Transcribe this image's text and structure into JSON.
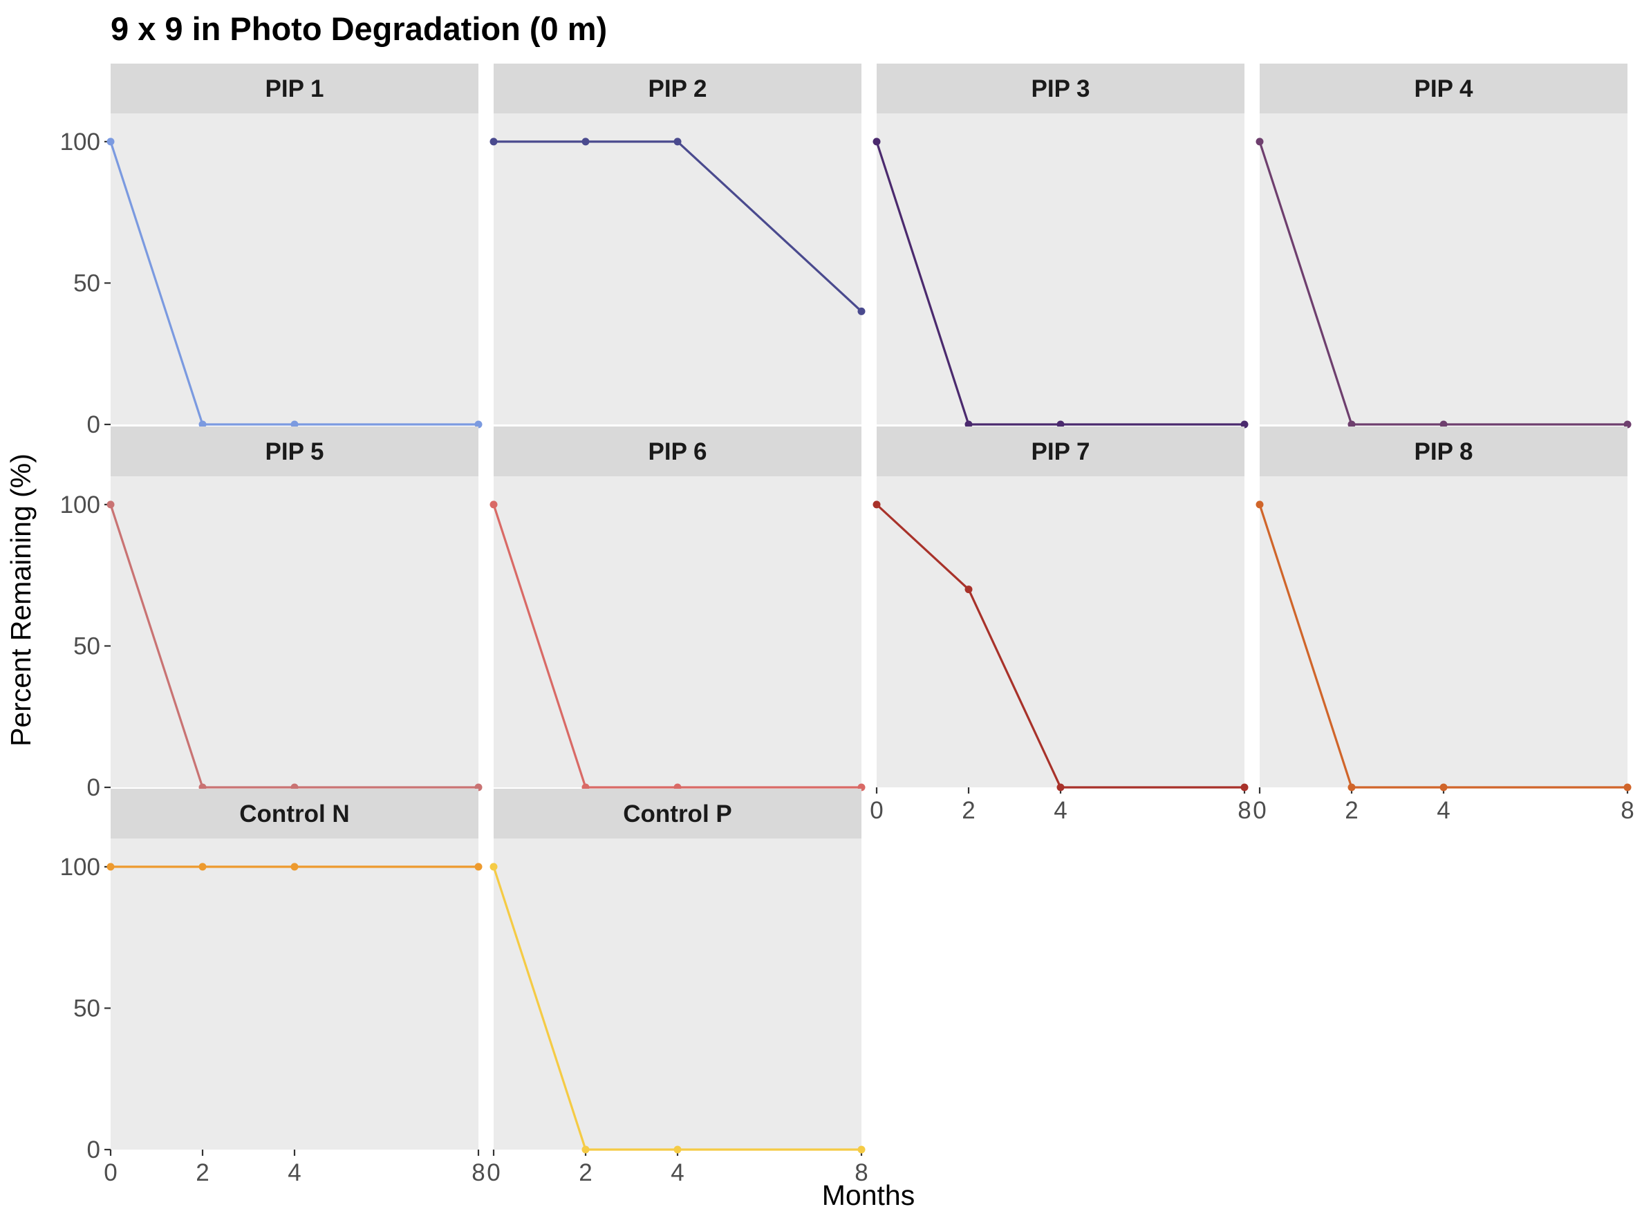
{
  "chart_data": {
    "type": "line",
    "title": "9 x 9 in Photo Degradation (0 m)",
    "xlabel": "Months",
    "ylabel": "Percent Remaining (%)",
    "x_ticks": [
      0,
      2,
      4,
      8
    ],
    "y_ticks": [
      0,
      50,
      100
    ],
    "xlim": [
      0,
      8
    ],
    "ylim": [
      0,
      110
    ],
    "grid": false,
    "panel_layout": {
      "columns": 4,
      "rows": 3
    },
    "x": [
      0,
      2,
      4,
      8
    ],
    "panels": [
      {
        "name": "PIP 1",
        "color": "#7B9AE0",
        "values": [
          100,
          0,
          0,
          0
        ]
      },
      {
        "name": "PIP 2",
        "color": "#4A4A8E",
        "values": [
          100,
          100,
          100,
          40
        ]
      },
      {
        "name": "PIP 3",
        "color": "#4B2A6E",
        "values": [
          100,
          0,
          0,
          0
        ]
      },
      {
        "name": "PIP 4",
        "color": "#6E3F6E",
        "values": [
          100,
          0,
          0,
          0
        ]
      },
      {
        "name": "PIP 5",
        "color": "#C97373",
        "values": [
          100,
          0,
          0,
          0
        ]
      },
      {
        "name": "PIP 6",
        "color": "#D96A66",
        "values": [
          100,
          0,
          0,
          0
        ]
      },
      {
        "name": "PIP 7",
        "color": "#A8322A",
        "values": [
          100,
          70,
          0,
          0
        ]
      },
      {
        "name": "PIP 8",
        "color": "#D0652A",
        "values": [
          100,
          0,
          0,
          0
        ]
      },
      {
        "name": "Control N",
        "color": "#ED9A2E",
        "values": [
          100,
          100,
          100,
          100
        ]
      },
      {
        "name": "Control P",
        "color": "#F5CB45",
        "values": [
          100,
          0,
          0,
          0
        ]
      }
    ]
  }
}
